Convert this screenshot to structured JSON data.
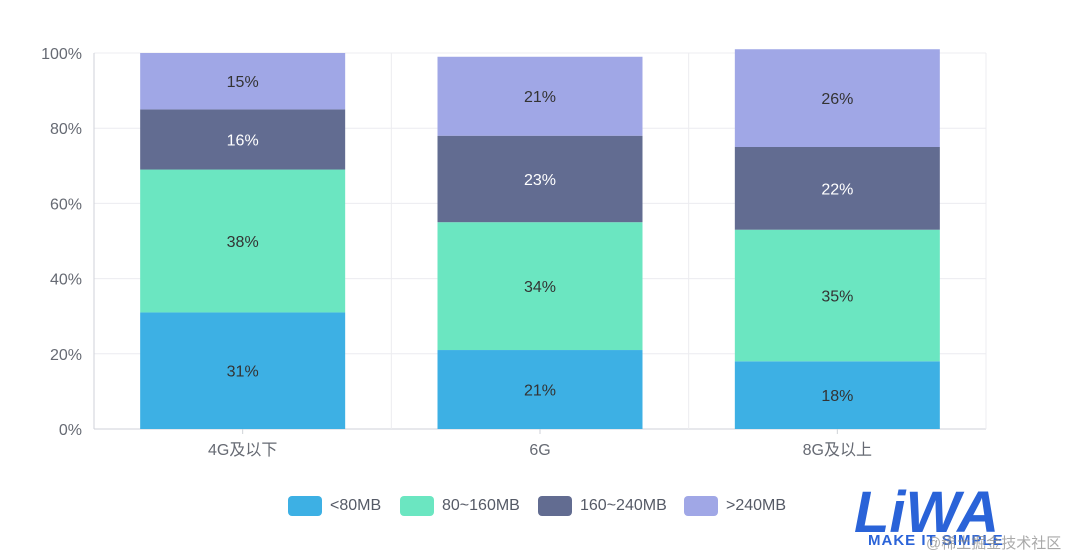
{
  "chart_data": {
    "type": "bar",
    "stacked": true,
    "categories": [
      "4G及以下",
      "6G",
      "8G及以上"
    ],
    "series": [
      {
        "name": "<80MB",
        "values": [
          31,
          21,
          18
        ],
        "labels": [
          "31%",
          "21%",
          "18%"
        ],
        "color": "#3db0e4",
        "label_color": "#333333"
      },
      {
        "name": "80~160MB",
        "values": [
          38,
          34,
          35
        ],
        "labels": [
          "38%",
          "34%",
          "35%"
        ],
        "color": "#6be6c1",
        "label_color": "#333333"
      },
      {
        "name": "160~240MB",
        "values": [
          16,
          23,
          22
        ],
        "labels": [
          "16%",
          "23%",
          "22%"
        ],
        "color": "#626c91",
        "label_color": "#ffffff"
      },
      {
        "name": ">240MB",
        "values": [
          15,
          21,
          26
        ],
        "labels": [
          "15%",
          "21%",
          "26%"
        ],
        "color": "#a0a7e6",
        "label_color": "#333333"
      }
    ],
    "ylim": [
      0,
      100
    ],
    "yticks": [
      "0%",
      "20%",
      "40%",
      "60%",
      "80%",
      "100%"
    ],
    "grid": true,
    "legend_position": "bottom"
  },
  "logo": {
    "brand": "LiWA",
    "tagline": "MAKE IT SIMPLE",
    "watermark": "@稀土掘金技术社区"
  }
}
